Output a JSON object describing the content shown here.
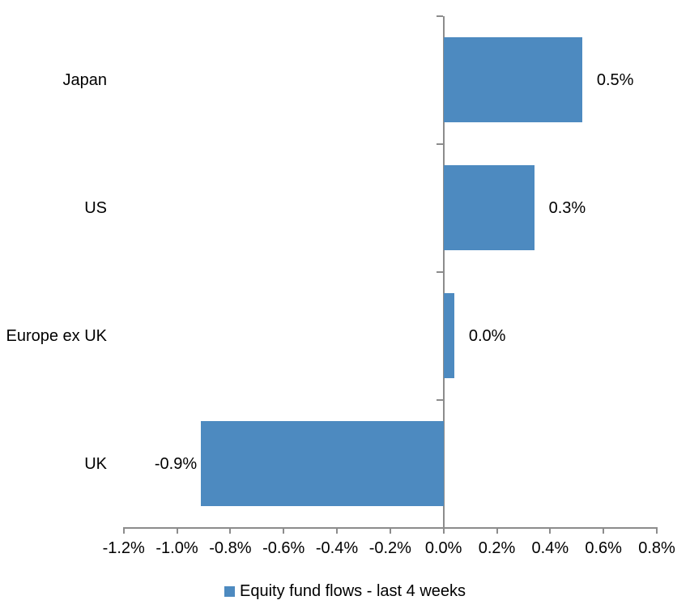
{
  "chart_data": {
    "type": "bar",
    "orientation": "horizontal",
    "title": "",
    "categories": [
      "Japan",
      "US",
      "Europe ex UK",
      "UK"
    ],
    "series": [
      {
        "name": "Equity fund flows - last 4 weeks",
        "values": [
          0.52,
          0.34,
          0.04,
          -0.91
        ],
        "data_labels": [
          "0.5%",
          "0.3%",
          "0.0%",
          "-0.9%"
        ]
      }
    ],
    "xlabel": "",
    "ylabel": "",
    "xlim": [
      -1.2,
      0.8
    ],
    "x_tick_values": [
      -1.2,
      -1.0,
      -0.8,
      -0.6,
      -0.4,
      -0.2,
      0.0,
      0.2,
      0.4,
      0.6,
      0.8
    ],
    "x_tick_labels": [
      "-1.2%",
      "-1.0%",
      "-0.8%",
      "-0.6%",
      "-0.4%",
      "-0.2%",
      "0.0%",
      "0.2%",
      "0.4%",
      "0.6%",
      "0.8%"
    ],
    "grid": "off",
    "legend_position": "bottom",
    "colors": {
      "bar": "#4d8ac0",
      "axis": "#8c8c8c",
      "text": "#000000",
      "background": "#ffffff"
    }
  }
}
